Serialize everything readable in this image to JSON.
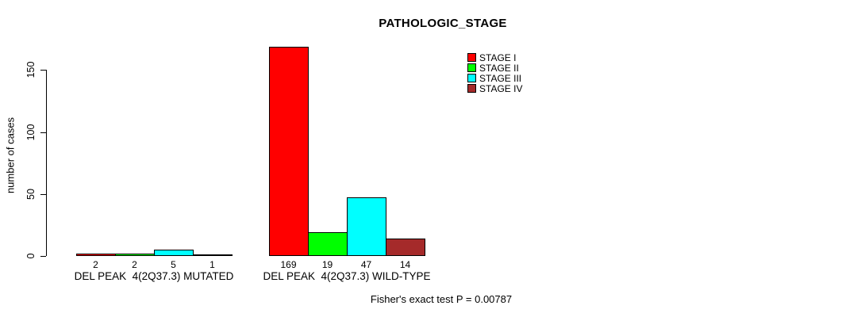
{
  "chart_data": {
    "type": "bar",
    "title": "PATHOLOGIC_STAGE",
    "ylabel": "number of cases",
    "xlabel": "",
    "categories": [
      "DEL PEAK  4(2Q37.3) MUTATED",
      "DEL PEAK  4(2Q37.3) WILD-TYPE"
    ],
    "series": [
      {
        "name": "STAGE I",
        "color": "#ff0000",
        "values": [
          2,
          169
        ]
      },
      {
        "name": "STAGE II",
        "color": "#00ff00",
        "values": [
          2,
          19
        ]
      },
      {
        "name": "STAGE III",
        "color": "#00ffff",
        "values": [
          5,
          47
        ]
      },
      {
        "name": "STAGE IV",
        "color": "#a52a2a",
        "values": [
          1,
          14
        ]
      }
    ],
    "yticks": [
      0,
      50,
      100,
      150
    ],
    "ylim": [
      0,
      175
    ],
    "grid": false,
    "legend_position": "top-right",
    "bar_value_labels": true,
    "annotation": "Fisher's exact test P = 0.00787"
  },
  "colors": {
    "background": "#ffffff",
    "text": "#000000",
    "bar_border": "#000000"
  }
}
